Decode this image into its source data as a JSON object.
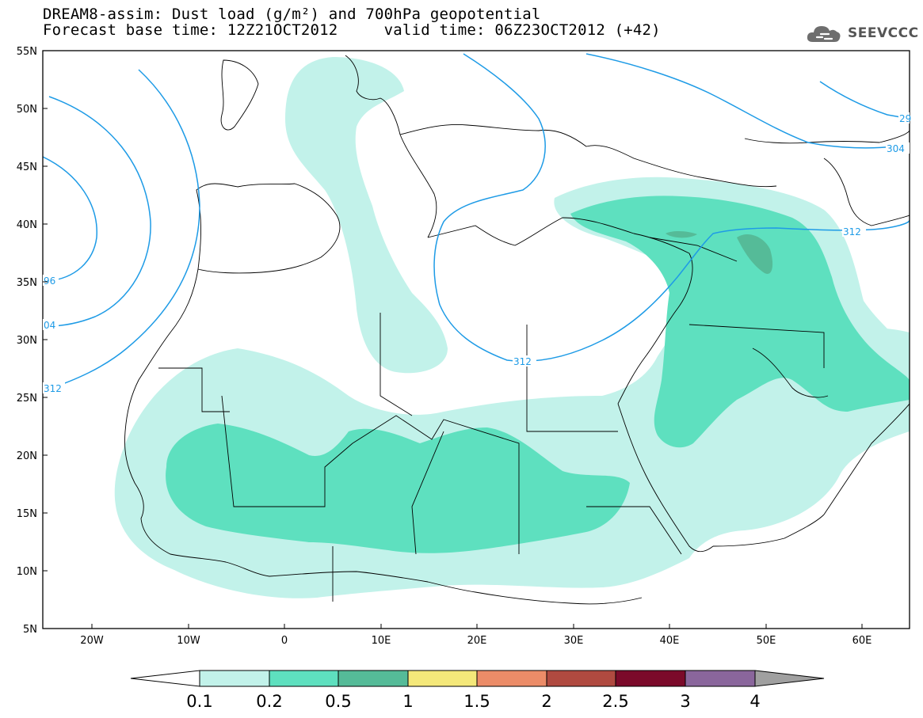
{
  "title": {
    "line1": "DREAM8-assim: Dust load (g/m²) and 700hPa geopotential",
    "line2_left": "Forecast base time: 12Z21OCT2012",
    "line2_right": "valid time: 06Z23OCT2012 (+42)"
  },
  "logo": {
    "text": "SEEVCCC",
    "icon": "cloud-icon"
  },
  "map": {
    "lat_labels": [
      "55N",
      "50N",
      "45N",
      "40N",
      "35N",
      "30N",
      "25N",
      "20N",
      "15N",
      "10N",
      "5N"
    ],
    "lon_labels": [
      "20W",
      "10W",
      "0",
      "10E",
      "20E",
      "30E",
      "40E",
      "50E",
      "60E"
    ],
    "isoline_labels": [
      "96",
      "04",
      "312",
      "312",
      "312",
      "304",
      "29"
    ],
    "colors": {
      "isoline": "#1e9be6",
      "land_border": "#000000"
    }
  },
  "legend": {
    "labels": [
      "0.1",
      "0.2",
      "0.5",
      "1",
      "1.5",
      "2",
      "2.5",
      "3",
      "4"
    ],
    "colors": [
      "#c2f2ea",
      "#5ee0bf",
      "#55bb98",
      "#f4e87a",
      "#ec8c68",
      "#b04a40",
      "#7b0a2a",
      "#8a669c",
      "#a0a0a0"
    ],
    "under_color": "#ffffff"
  }
}
